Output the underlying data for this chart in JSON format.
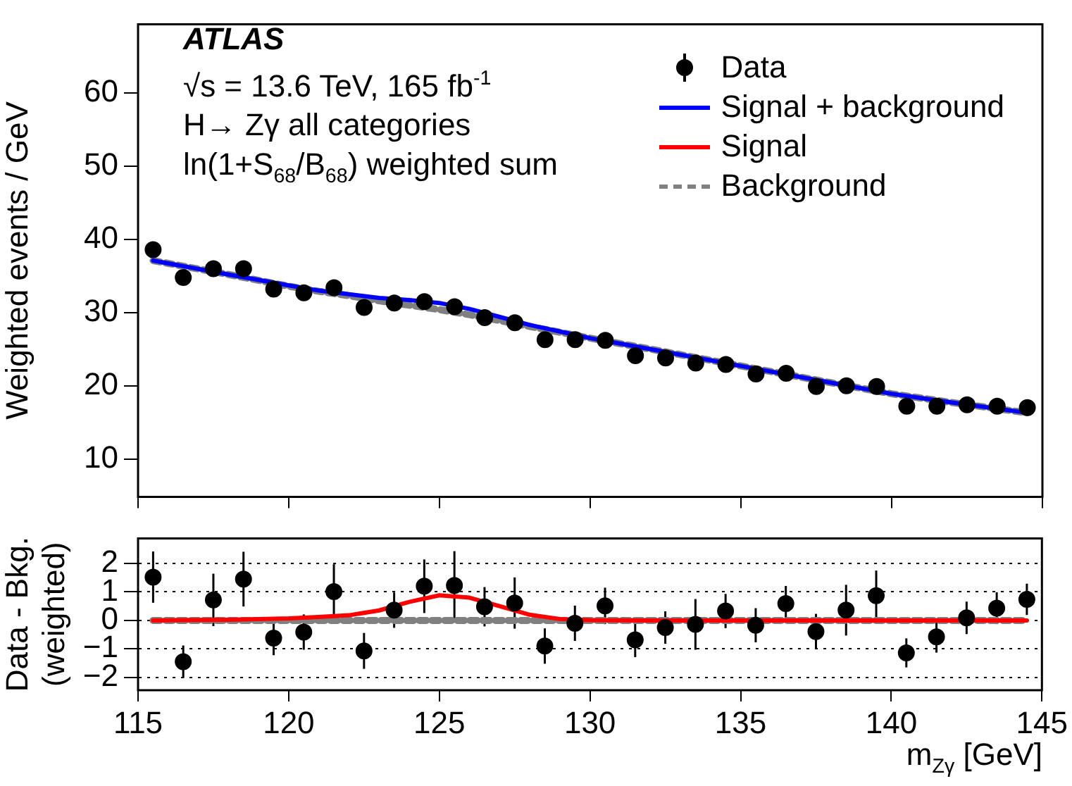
{
  "chart_data": [
    {
      "type": "scatter",
      "ylabel": "Weighted events / GeV",
      "annotations": [
        "ATLAS",
        "√s = 13.6 TeV, 165 fb$^{-1}$",
        "H→ Zγ all categories",
        "ln(1+S$_{68}$/B$_{68}$) weighted sum"
      ],
      "x": [
        115.5,
        116.5,
        117.5,
        118.5,
        119.5,
        120.5,
        121.5,
        122.5,
        123.5,
        124.5,
        125.5,
        126.5,
        127.5,
        128.5,
        129.5,
        130.5,
        131.5,
        132.5,
        133.5,
        134.5,
        135.5,
        136.5,
        137.5,
        138.5,
        139.5,
        140.5,
        141.5,
        142.5,
        143.5,
        144.5
      ],
      "xlim": [
        115,
        145
      ],
      "xticks": [
        115,
        120,
        125,
        130,
        135,
        140,
        145
      ],
      "ylim": [
        4.8,
        69.4
      ],
      "yticks": [
        10,
        20,
        30,
        40,
        50,
        60
      ],
      "tick_labels": "y",
      "legend": "top right",
      "series": [
        {
          "name": "Data",
          "color": "#000000",
          "marker": "circle",
          "values": [
            38.6,
            34.8,
            36.0,
            36.0,
            33.2,
            32.7,
            33.4,
            30.7,
            31.3,
            31.5,
            30.8,
            29.3,
            28.6,
            26.3,
            26.3,
            26.2,
            24.1,
            23.8,
            23.1,
            22.9,
            21.6,
            21.7,
            19.9,
            20.0,
            19.9,
            17.2,
            17.2,
            17.4,
            17.2,
            17.0
          ]
        },
        {
          "name": "Signal + background",
          "type": "line",
          "color": "#0000ff",
          "x": [
            115.5,
            118,
            120,
            121,
            122,
            123,
            124,
            125,
            126,
            127,
            128,
            129,
            130,
            132,
            135,
            138,
            140,
            142,
            144.5
          ],
          "values": [
            37.1,
            35.2,
            33.7,
            33.0,
            32.5,
            32.0,
            31.7,
            31.3,
            30.5,
            29.4,
            28.3,
            27.4,
            26.5,
            25.0,
            22.7,
            20.4,
            18.9,
            17.7,
            16.3
          ]
        },
        {
          "type": "line",
          "color": "#808080",
          "line_style": "dashed",
          "x": [
            115.5,
            118,
            120,
            121,
            122,
            123,
            124,
            125,
            126,
            127,
            128,
            129,
            130,
            132,
            135,
            138,
            140,
            142,
            144.5
          ],
          "values": [
            37.1,
            35.2,
            33.6,
            32.9,
            32.3,
            31.6,
            31.0,
            30.4,
            29.7,
            28.9,
            28.1,
            27.3,
            26.5,
            25.0,
            22.7,
            20.4,
            18.9,
            17.7,
            16.3
          ]
        }
      ]
    },
    {
      "type": "scatter",
      "ylabel": "Data - Bkg.\n(weighted)",
      "xlabel": "m$_{Zγ}$ [GeV]",
      "x": [
        115.5,
        116.5,
        117.5,
        118.5,
        119.5,
        120.5,
        121.5,
        122.5,
        123.5,
        124.5,
        125.5,
        126.5,
        127.5,
        128.5,
        129.5,
        130.5,
        131.5,
        132.5,
        133.5,
        134.5,
        135.5,
        136.5,
        137.5,
        138.5,
        139.5,
        140.5,
        141.5,
        142.5,
        143.5,
        144.5
      ],
      "xlim": [
        115,
        145
      ],
      "xticks": [
        115,
        120,
        125,
        130,
        135,
        140,
        145
      ],
      "ylim": [
        -2.45,
        2.88
      ],
      "yticks": [
        -2,
        -1,
        0,
        1,
        2
      ],
      "grid": "y",
      "series": [
        {
          "color": "#000000",
          "marker": "circle",
          "values": [
            1.52,
            -1.45,
            0.72,
            1.45,
            -0.62,
            -0.41,
            1.01,
            -1.07,
            0.36,
            1.2,
            1.23,
            0.48,
            0.61,
            -0.9,
            -0.1,
            0.51,
            -0.68,
            -0.25,
            -0.14,
            0.33,
            -0.17,
            0.59,
            -0.39,
            0.36,
            0.87,
            -1.14,
            -0.58,
            0.09,
            0.43,
            0.74
          ],
          "errors": [
            0.9,
            0.57,
            0.92,
            0.96,
            0.6,
            0.62,
            0.96,
            0.63,
            0.62,
            0.94,
            1.2,
            0.69,
            0.9,
            0.62,
            0.62,
            0.64,
            0.61,
            0.57,
            0.89,
            0.6,
            0.6,
            0.62,
            0.62,
            0.89,
            0.88,
            0.51,
            0.55,
            0.57,
            0.56,
            0.55
          ]
        },
        {
          "name": "Signal",
          "type": "line",
          "color": "#ff0000",
          "x": [
            115.5,
            118,
            120,
            121,
            122,
            123,
            124,
            125,
            126,
            127,
            128,
            129,
            130,
            132,
            135,
            138,
            140,
            142,
            144.5
          ],
          "values": [
            0,
            0.02,
            0.07,
            0.12,
            0.18,
            0.35,
            0.65,
            0.88,
            0.8,
            0.5,
            0.2,
            0.05,
            0.01,
            0,
            0,
            0,
            0,
            0,
            0
          ]
        },
        {
          "name": "Background",
          "type": "line",
          "color": "#808080",
          "line_style": "dashed",
          "x": [
            115.5,
            144.5
          ],
          "values": [
            0,
            0
          ]
        }
      ]
    }
  ]
}
